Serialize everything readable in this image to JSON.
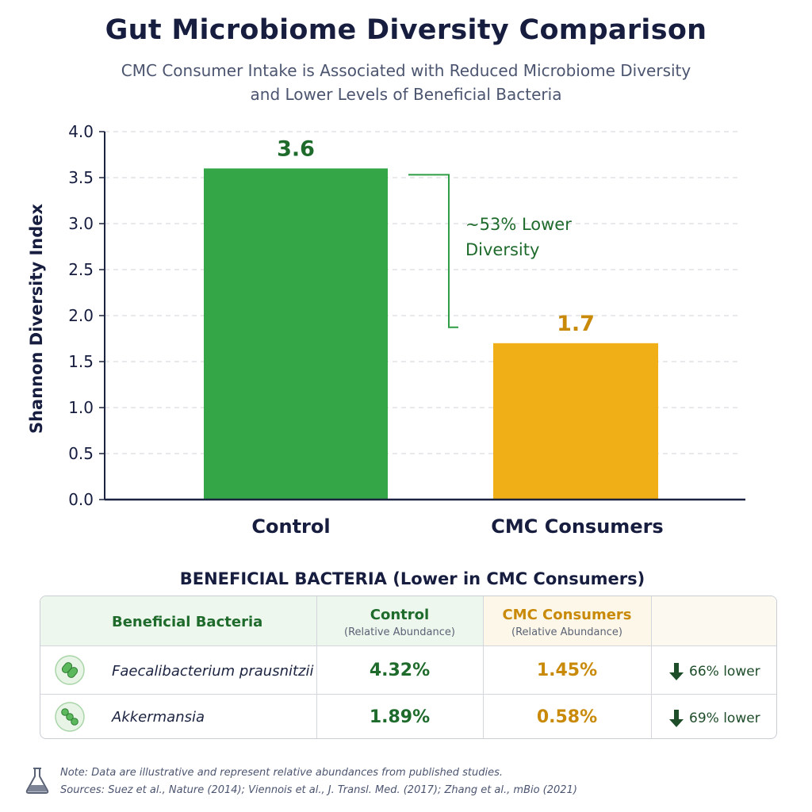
{
  "title": "Gut Microbiome Diversity Comparison",
  "subtitle_line1": "CMC Consumer Intake is Associated with Reduced Microbiome Diversity",
  "subtitle_line2": "and Lower Levels of Beneficial Bacteria",
  "chart_data": {
    "type": "bar",
    "categories": [
      "Control",
      "CMC Consumers"
    ],
    "values": [
      3.6,
      1.7
    ],
    "data_labels": [
      "3.6",
      "1.7"
    ],
    "colors": [
      "#34a648",
      "#f0ae17"
    ],
    "label_colors": [
      "#1e6b2c",
      "#c98a0a"
    ],
    "ylabel": "Shannon Diversity Index",
    "ylim": [
      0,
      4.0
    ],
    "yticks": [
      "0.0",
      "0.5",
      "1.0",
      "1.5",
      "2.0",
      "2.5",
      "3.0",
      "3.5",
      "4.0"
    ],
    "grid": true,
    "annotation": {
      "line1": "~53% Lower",
      "line2": "Diversity",
      "color": "#2e9e44",
      "from_value": 3.6,
      "to_value": 1.7
    }
  },
  "bacteria": {
    "heading": "BENEFICIAL BACTERIA (Lower in CMC Consumers)",
    "columns": {
      "name": "Beneficial Bacteria",
      "control": "Control",
      "control_sub": "(Relative Abundance)",
      "cmc": "CMC Consumers",
      "cmc_sub": "(Relative Abundance)"
    },
    "rows": [
      {
        "name": "Faecalibacterium prausnitzii",
        "control": "4.32%",
        "cmc": "1.45%",
        "change": "66% lower",
        "icon": "bacteria-icon"
      },
      {
        "name": "Akkermansia",
        "control": "1.89%",
        "cmc": "0.58%",
        "change": "69% lower",
        "icon": "bacteria-icon"
      }
    ]
  },
  "footnote": {
    "note": "Note: Data are illustrative and represent relative abundances from published studies.",
    "sources": "Sources: Suez et al., Nature (2014); Viennois et al., J. Transl. Med. (2017); Zhang et al., mBio (2021)",
    "icon": "flask-icon"
  }
}
